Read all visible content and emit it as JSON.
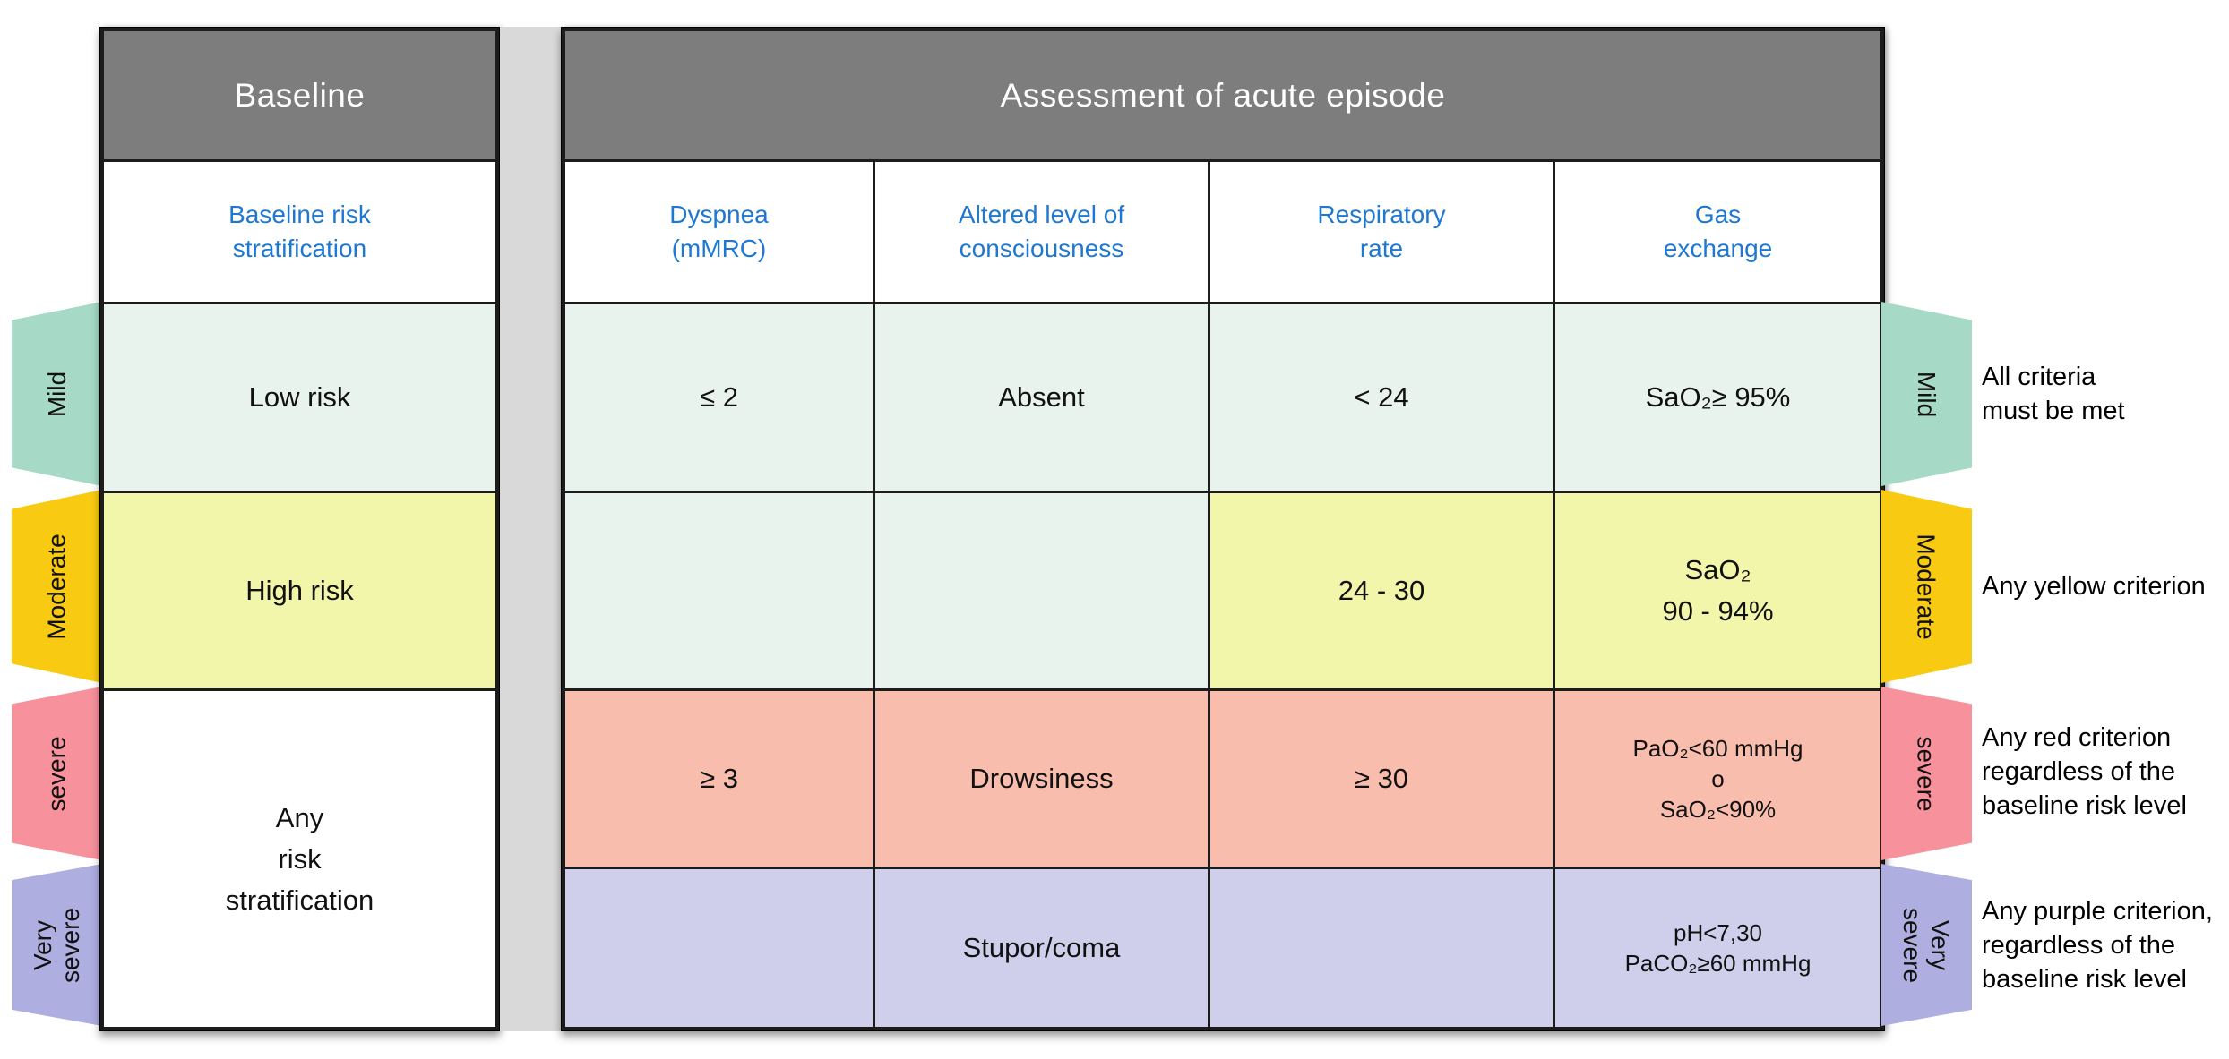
{
  "figure": {
    "header": {
      "baseline": "Baseline",
      "assessment": "Assessment of acute episode"
    },
    "columns": {
      "baseline": "Baseline risk\nstratification",
      "dyspnea": "Dyspnea\n(mMRC)",
      "consciousness": "Altered level of\nconsciousness",
      "respiratory": "Respiratory\nrate",
      "gas": "Gas\nexchange"
    },
    "rows": {
      "mild": {
        "label": "Mild",
        "baseline": "Low risk",
        "dyspnea": "≤ 2",
        "consciousness": "Absent",
        "respiratory": "< 24",
        "gas": "SaO₂≥ 95%",
        "note": "All criteria\nmust be met"
      },
      "moderate": {
        "label": "Moderate",
        "baseline": "High risk",
        "dyspnea": "",
        "consciousness": "",
        "respiratory": "24 - 30",
        "gas": "SaO₂\n90 - 94%",
        "note": "Any yellow criterion"
      },
      "severe": {
        "label": "severe",
        "baseline_merged": "Any\nrisk\nstratification",
        "dyspnea": "≥ 3",
        "consciousness": "Drowsiness",
        "respiratory": "≥ 30",
        "gas": "PaO₂<60 mmHg\no\nSaO₂<90%",
        "note": "Any red criterion\nregardless of the\nbaseline risk level"
      },
      "very_severe": {
        "label": "Very\nsevere",
        "dyspnea": "",
        "consciousness": "Stupor/coma",
        "respiratory": "",
        "gas": "pH<7,30\nPaCO₂≥60 mmHg",
        "note": "Any purple criterion,\nregardless of the\nbaseline risk level"
      }
    },
    "colors": {
      "mild_tab": "#a7dac6",
      "moderate_tab": "#f8cb12",
      "severe_tab": "#f7919c",
      "very_severe_tab": "#aeaee0",
      "mild_cell": "#e8f3ee",
      "moderate_cell": "#f2f6aa",
      "severe_cell": "#f8bdad",
      "very_severe_cell": "#cfcfeb",
      "header_bg": "#7d7d7d",
      "column_label_text": "#1e78d2",
      "divider": "#d9d9d9"
    }
  }
}
